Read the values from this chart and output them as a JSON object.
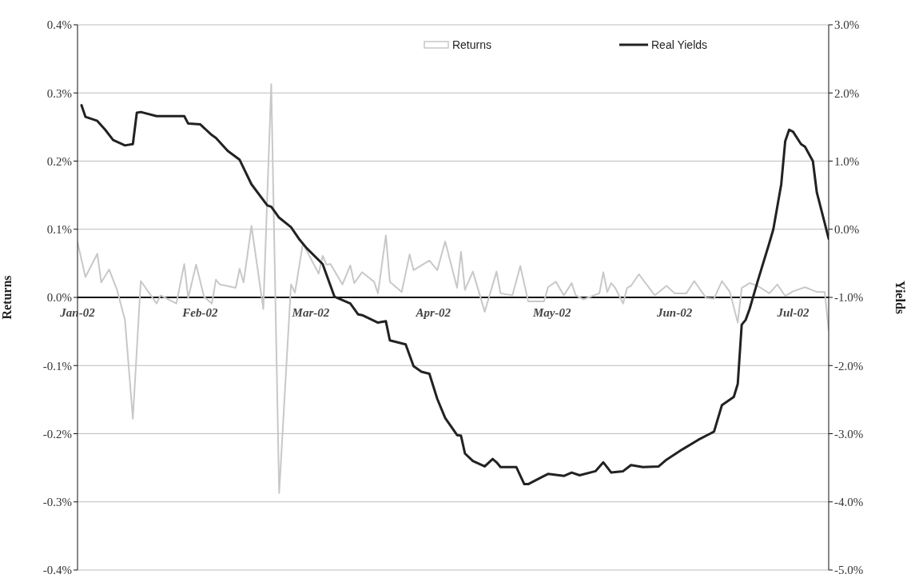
{
  "chart_data": {
    "type": "line",
    "xlabel": null,
    "ylabel": "Returns",
    "y2label": "Yields",
    "legend": "top",
    "grid": "y",
    "marker": "none",
    "line_style": "solid",
    "xlim": [
      "2002-01-01",
      "2002-07-10"
    ],
    "xticks": [
      {
        "value": "2002-01-01",
        "label": "Jan-02"
      },
      {
        "value": "2002-02-01",
        "label": "Feb-02"
      },
      {
        "value": "2002-03-01",
        "label": "Mar-02"
      },
      {
        "value": "2002-04-01",
        "label": "Apr-02"
      },
      {
        "value": "2002-05-01",
        "label": "May-02"
      },
      {
        "value": "2002-06-01",
        "label": "Jun-02"
      },
      {
        "value": "2002-07-01",
        "label": "Jul-02"
      }
    ],
    "ylim": [
      -0.4,
      0.4
    ],
    "yticks": [
      {
        "value": -0.4,
        "label": "-0.4%"
      },
      {
        "value": -0.3,
        "label": "-0.3%"
      },
      {
        "value": -0.2,
        "label": "-0.2%"
      },
      {
        "value": -0.1,
        "label": "-0.1%"
      },
      {
        "value": 0,
        "label": "0.0%"
      },
      {
        "value": 0.1,
        "label": "0.1%"
      },
      {
        "value": 0.2,
        "label": "0.2%"
      },
      {
        "value": 0.3,
        "label": "0.3%"
      },
      {
        "value": 0.4,
        "label": "0.4%"
      }
    ],
    "y2lim": [
      -5,
      3
    ],
    "y2ticks": [
      {
        "value": -5,
        "label": "-5.0%"
      },
      {
        "value": -4,
        "label": "-4.0%"
      },
      {
        "value": -3,
        "label": "-3.0%"
      },
      {
        "value": -2,
        "label": "-2.0%"
      },
      {
        "value": -1,
        "label": "-1.0%"
      },
      {
        "value": 0,
        "label": "0.0%"
      },
      {
        "value": 1,
        "label": "1.0%"
      },
      {
        "value": 2,
        "label": "2.0%"
      },
      {
        "value": 3,
        "label": "3.0%"
      }
    ],
    "series": [
      {
        "name": "Returns",
        "color": "#c8c8c8",
        "x": [
          "2002-01-01",
          "2002-01-03",
          "2002-01-06",
          "2002-01-07",
          "2002-01-09",
          "2002-01-11",
          "2002-01-13",
          "2002-01-15",
          "2002-01-17",
          "2002-01-21",
          "2002-01-22",
          "2002-01-26",
          "2002-01-28",
          "2002-01-29",
          "2002-01-31",
          "2002-02-02",
          "2002-02-04",
          "2002-02-05",
          "2002-02-06",
          "2002-02-10",
          "2002-02-11",
          "2002-02-12",
          "2002-02-14",
          "2002-02-17",
          "2002-02-19",
          "2002-02-21",
          "2002-02-24",
          "2002-02-25",
          "2002-02-27",
          "2002-03-03",
          "2002-03-04",
          "2002-03-05",
          "2002-03-06",
          "2002-03-09",
          "2002-03-11",
          "2002-03-12",
          "2002-03-14",
          "2002-03-17",
          "2002-03-18",
          "2002-03-20",
          "2002-03-21",
          "2002-03-24",
          "2002-03-26",
          "2002-03-27",
          "2002-03-31",
          "2002-04-02",
          "2002-04-04",
          "2002-04-07",
          "2002-04-08",
          "2002-04-09",
          "2002-04-11",
          "2002-04-14",
          "2002-04-17",
          "2002-04-18",
          "2002-04-21",
          "2002-04-23",
          "2002-04-25",
          "2002-04-29",
          "2002-04-30",
          "2002-05-02",
          "2002-05-04",
          "2002-05-06",
          "2002-05-07",
          "2002-05-09",
          "2002-05-13",
          "2002-05-14",
          "2002-05-15",
          "2002-05-16",
          "2002-05-17",
          "2002-05-19",
          "2002-05-20",
          "2002-05-21",
          "2002-05-23",
          "2002-05-27",
          "2002-05-30",
          "2002-06-01",
          "2002-06-04",
          "2002-06-06",
          "2002-06-09",
          "2002-06-11",
          "2002-06-13",
          "2002-06-15",
          "2002-06-17",
          "2002-06-18",
          "2002-06-20",
          "2002-06-22",
          "2002-06-25",
          "2002-06-27",
          "2002-06-29",
          "2002-07-01",
          "2002-07-04",
          "2002-07-07",
          "2002-07-09",
          "2002-07-10"
        ],
        "values": [
          0.081,
          0.03,
          0.064,
          0.022,
          0.041,
          0.011,
          -0.033,
          -0.178,
          0.024,
          -0.009,
          0.003,
          -0.009,
          0.049,
          -0.001,
          0.048,
          0.001,
          -0.009,
          0.026,
          0.019,
          0.014,
          0.042,
          0.022,
          0.105,
          -0.017,
          0.313,
          -0.287,
          0.019,
          0.007,
          0.079,
          0.035,
          0.061,
          0.048,
          0.049,
          0.019,
          0.047,
          0.021,
          0.037,
          0.023,
          0.006,
          0.091,
          0.023,
          0.008,
          0.063,
          0.04,
          0.054,
          0.04,
          0.082,
          0.014,
          0.067,
          0.011,
          0.038,
          -0.021,
          0.038,
          0.006,
          0.003,
          0.046,
          -0.006,
          -0.006,
          0.015,
          0.023,
          0.003,
          0.021,
          0.003,
          -0.003,
          0.006,
          0.037,
          0.008,
          0.021,
          0.014,
          -0.009,
          0.014,
          0.017,
          0.034,
          0.003,
          0.017,
          0.006,
          0.006,
          0.024,
          -0.001,
          -0.002,
          0.024,
          0.008,
          -0.037,
          0.014,
          0.021,
          0.017,
          0.006,
          0.019,
          0.002,
          0.009,
          0.015,
          0.008,
          0.008,
          -0.048
        ]
      },
      {
        "name": "Real Yields",
        "color": "#222222",
        "axis": "y2",
        "x": [
          "2002-01-02",
          "2002-01-03",
          "2002-01-06",
          "2002-01-08",
          "2002-01-10",
          "2002-01-13",
          "2002-01-15",
          "2002-01-16",
          "2002-01-17",
          "2002-01-21",
          "2002-01-24",
          "2002-01-28",
          "2002-01-29",
          "2002-02-01",
          "2002-02-04",
          "2002-02-05",
          "2002-02-08",
          "2002-02-11",
          "2002-02-14",
          "2002-02-18",
          "2002-02-19",
          "2002-02-21",
          "2002-02-24",
          "2002-02-26",
          "2002-02-28",
          "2002-03-04",
          "2002-03-07",
          "2002-03-11",
          "2002-03-13",
          "2002-03-14",
          "2002-03-18",
          "2002-03-20",
          "2002-03-21",
          "2002-03-25",
          "2002-03-27",
          "2002-03-29",
          "2002-03-31",
          "2002-04-02",
          "2002-04-04",
          "2002-04-07",
          "2002-04-08",
          "2002-04-09",
          "2002-04-11",
          "2002-04-14",
          "2002-04-16",
          "2002-04-17",
          "2002-04-18",
          "2002-04-22",
          "2002-04-24",
          "2002-04-25",
          "2002-04-28",
          "2002-04-30",
          "2002-05-04",
          "2002-05-06",
          "2002-05-08",
          "2002-05-12",
          "2002-05-14",
          "2002-05-16",
          "2002-05-19",
          "2002-05-21",
          "2002-05-24",
          "2002-05-28",
          "2002-05-30",
          "2002-06-03",
          "2002-06-07",
          "2002-06-10",
          "2002-06-11",
          "2002-06-13",
          "2002-06-16",
          "2002-06-17",
          "2002-06-18",
          "2002-06-19",
          "2002-06-20",
          "2002-06-22",
          "2002-06-25",
          "2002-06-26",
          "2002-06-28",
          "2002-06-29",
          "2002-06-30",
          "2002-07-01",
          "2002-07-03",
          "2002-07-04",
          "2002-07-06",
          "2002-07-07",
          "2002-07-09",
          "2002-07-10"
        ],
        "values": [
          1.82,
          1.65,
          1.59,
          1.46,
          1.31,
          1.23,
          1.25,
          1.71,
          1.72,
          1.66,
          1.66,
          1.66,
          1.55,
          1.54,
          1.38,
          1.34,
          1.15,
          1.02,
          0.66,
          0.35,
          0.33,
          0.17,
          0.03,
          -0.14,
          -0.28,
          -0.51,
          -0.99,
          -1.09,
          -1.25,
          -1.26,
          -1.37,
          -1.35,
          -1.63,
          -1.69,
          -2.01,
          -2.09,
          -2.12,
          -2.49,
          -2.77,
          -3.02,
          -3.03,
          -3.29,
          -3.4,
          -3.48,
          -3.37,
          -3.42,
          -3.49,
          -3.49,
          -3.74,
          -3.74,
          -3.65,
          -3.59,
          -3.62,
          -3.57,
          -3.61,
          -3.55,
          -3.42,
          -3.57,
          -3.55,
          -3.46,
          -3.49,
          -3.48,
          -3.38,
          -3.23,
          -3.09,
          -3.0,
          -2.97,
          -2.58,
          -2.46,
          -2.27,
          -1.4,
          -1.33,
          -1.17,
          -0.77,
          -0.2,
          0.0,
          0.66,
          1.29,
          1.46,
          1.43,
          1.25,
          1.21,
          1.0,
          0.54,
          0.09,
          -0.14
        ]
      }
    ]
  }
}
